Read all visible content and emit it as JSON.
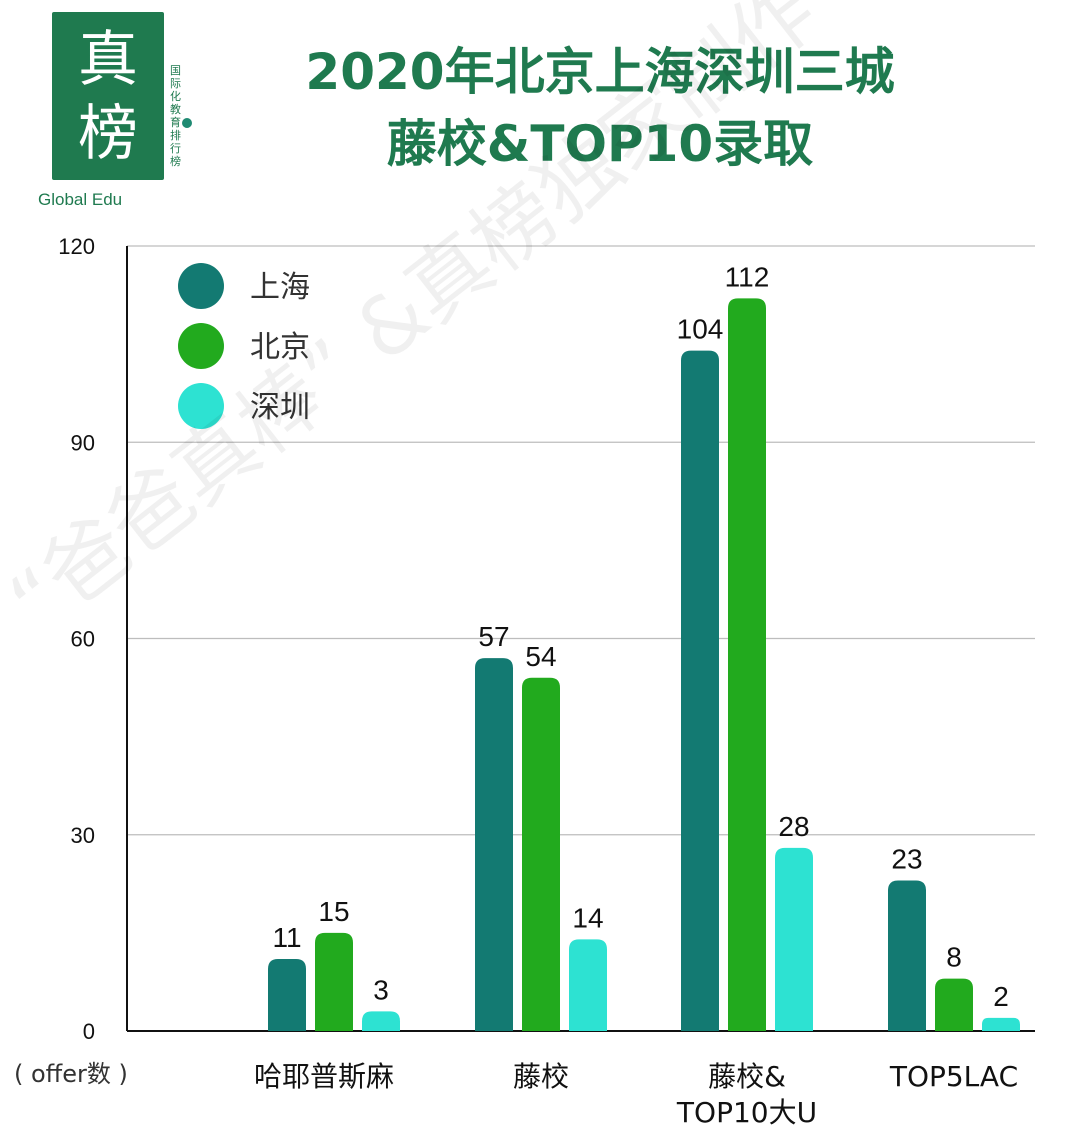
{
  "logo": {
    "char1": "真",
    "char2": "榜",
    "sub": "国际化教育排行榜",
    "en": "Global Edu"
  },
  "watermark": "“爸爸真棒” &真榜独家制作 不得转载",
  "colors": {
    "title": "#1f7a4f",
    "上海": "#137a72",
    "北京": "#22aa1e",
    "深圳": "#2de2d2"
  },
  "chart_data": {
    "type": "bar",
    "title": "2020年北京上海深圳三城\n藤校&TOP10录取",
    "ylabel": "( offer数 )",
    "xlabel": "",
    "ylim": [
      0,
      120
    ],
    "yticks": [
      0,
      30,
      60,
      90,
      120
    ],
    "grid": true,
    "legend": "top-left",
    "categories": [
      "哈耶普斯麻",
      "藤校",
      "藤校&\nTOP10大U",
      "TOP5LAC"
    ],
    "series": [
      {
        "name": "上海",
        "values": [
          11,
          57,
          104,
          23
        ]
      },
      {
        "name": "北京",
        "values": [
          15,
          54,
          112,
          8
        ]
      },
      {
        "name": "深圳",
        "values": [
          3,
          14,
          28,
          2
        ]
      }
    ]
  }
}
